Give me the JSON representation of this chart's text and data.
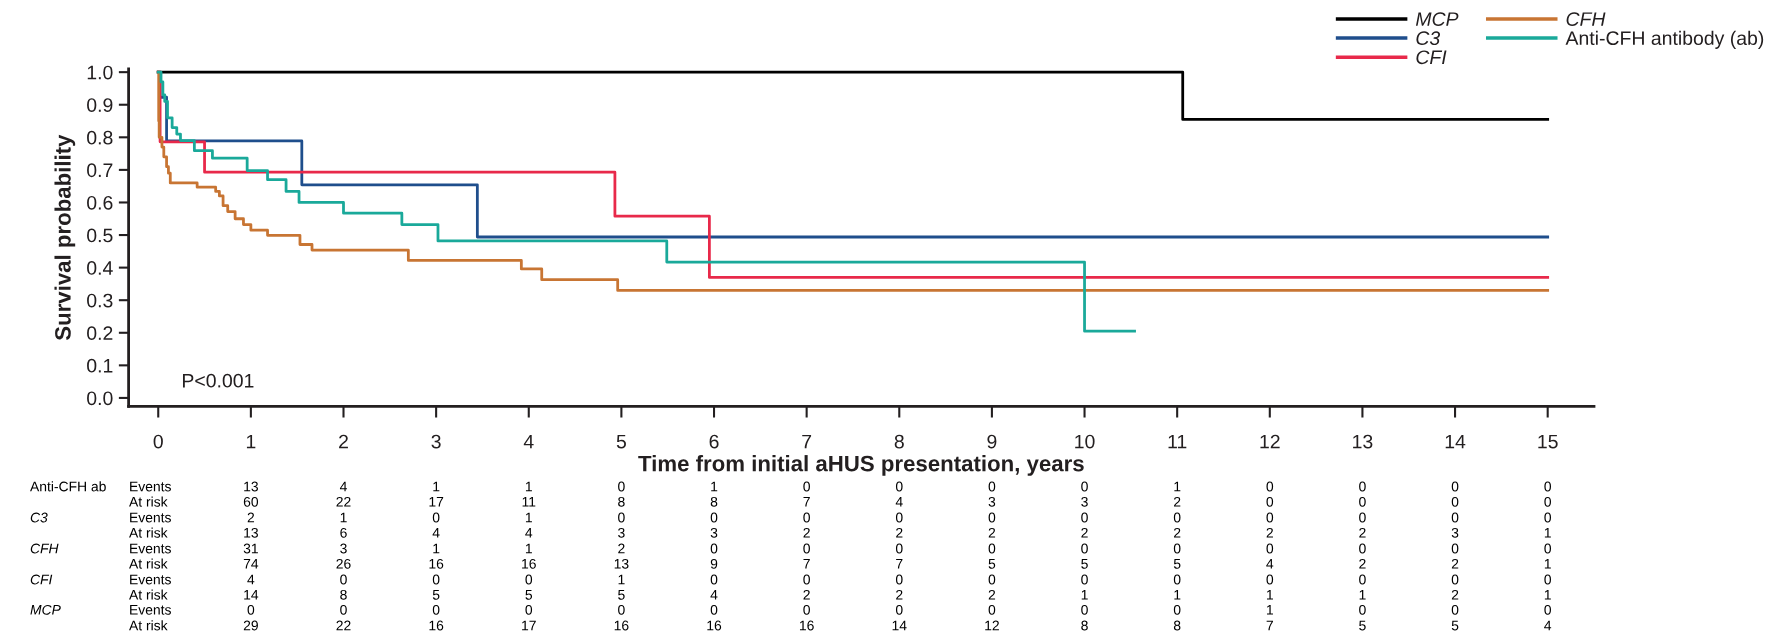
{
  "chart_data": {
    "type": "step",
    "xlabel": "Time from initial aHUS presentation, years",
    "ylabel": "Survival probability",
    "xlim": [
      -0.32,
      15.5
    ],
    "ylim": [
      -0.026,
      1.01
    ],
    "xticks": [
      0,
      1,
      2,
      3,
      4,
      5,
      6,
      7,
      8,
      9,
      10,
      11,
      12,
      13,
      14,
      15
    ],
    "yticks": [
      {
        "value": 0,
        "label": "0.0"
      },
      0.1,
      0.2,
      0.3,
      0.4,
      0.5,
      0.6,
      0.7,
      0.8,
      0.9,
      {
        "value": 1,
        "label": "1.0"
      }
    ],
    "grid": false,
    "legend": "top right",
    "marker": "none",
    "line_style": "solid",
    "series": [
      {
        "name": "MCP",
        "color": "#000000",
        "x": [
          0,
          11.06,
          15
        ],
        "values": [
          1.0,
          0.855,
          0.855
        ]
      },
      {
        "name": "C3",
        "color": "#1f4e8c",
        "x": [
          0,
          0.02,
          0.09,
          1.55,
          3.445,
          15
        ],
        "values": [
          1.0,
          0.923,
          0.789,
          0.654,
          0.494,
          0.494
        ]
      },
      {
        "name": "CFI",
        "color": "#e8294a",
        "x": [
          0,
          0.02,
          0.5,
          4.93,
          5.95,
          15
        ],
        "values": [
          1.0,
          0.786,
          0.693,
          0.558,
          0.37,
          0.37
        ]
      },
      {
        "name": "CFH",
        "color": "#c87533",
        "x": [
          0,
          0.005,
          0.01,
          0.04,
          0.06,
          0.09,
          0.11,
          0.13,
          0.42,
          0.62,
          0.66,
          0.7,
          0.75,
          0.83,
          0.92,
          1.0,
          1.18,
          1.53,
          1.66,
          2.7,
          3.92,
          4.14,
          4.96,
          15
        ],
        "values": [
          1.0,
          0.85,
          0.8,
          0.77,
          0.74,
          0.71,
          0.69,
          0.66,
          0.647,
          0.634,
          0.62,
          0.59,
          0.572,
          0.55,
          0.532,
          0.515,
          0.499,
          0.471,
          0.454,
          0.422,
          0.396,
          0.363,
          0.33,
          0.33
        ]
      },
      {
        "name": "Anti-CFH antibody (ab)",
        "color": "#1aa99a",
        "x": [
          0,
          0.03,
          0.05,
          0.07,
          0.1,
          0.15,
          0.2,
          0.24,
          0.39,
          0.585,
          0.96,
          1.18,
          1.38,
          1.52,
          2.0,
          2.63,
          3.02,
          5.49,
          10.0,
          10.54
        ],
        "values": [
          1.0,
          0.97,
          0.93,
          0.91,
          0.86,
          0.83,
          0.81,
          0.79,
          0.759,
          0.736,
          0.698,
          0.67,
          0.634,
          0.6,
          0.567,
          0.532,
          0.482,
          0.417,
          0.205,
          0.205
        ]
      }
    ],
    "annotations": [
      "P<0.001",
      "Anti-CFH ab",
      "Events",
      "13",
      "4",
      "1",
      "1",
      "0",
      "1",
      "0",
      "0",
      "0",
      "0",
      "1",
      "0",
      "0",
      "0",
      "0",
      "At risk",
      "60",
      "22",
      "17",
      "11",
      "8",
      "8",
      "7",
      "4",
      "3",
      "3",
      "2",
      "0",
      "0",
      "0",
      "0",
      "C3",
      "Events",
      "2",
      "1",
      "0",
      "1",
      "0",
      "0",
      "0",
      "0",
      "0",
      "0",
      "0",
      "0",
      "0",
      "0",
      "0",
      "At risk",
      "13",
      "6",
      "4",
      "4",
      "3",
      "3",
      "2",
      "2",
      "2",
      "2",
      "2",
      "2",
      "2",
      "3",
      "1",
      "CFH",
      "Events",
      "31",
      "3",
      "1",
      "1",
      "2",
      "0",
      "0",
      "0",
      "0",
      "0",
      "0",
      "0",
      "0",
      "0",
      "0",
      "At risk",
      "74",
      "26",
      "16",
      "16",
      "13",
      "9",
      "7",
      "7",
      "5",
      "5",
      "5",
      "4",
      "2",
      "2",
      "1",
      "CFI",
      "Events",
      "4",
      "0",
      "0",
      "0",
      "1",
      "0",
      "0",
      "0",
      "0",
      "0",
      "0",
      "0",
      "0",
      "0",
      "0",
      "At risk",
      "14",
      "8",
      "5",
      "5",
      "5",
      "4",
      "2",
      "2",
      "2",
      "1",
      "1",
      "1",
      "1",
      "2",
      "1",
      "MCP",
      "Events",
      "0",
      "0",
      "0",
      "0",
      "0",
      "0",
      "0",
      "0",
      "0",
      "0",
      "0",
      "1",
      "0",
      "0",
      "0",
      "At risk",
      "29",
      "22",
      "16",
      "17",
      "16",
      "16",
      "16",
      "14",
      "12",
      "8",
      "8",
      "7",
      "5",
      "5",
      "4"
    ]
  }
}
